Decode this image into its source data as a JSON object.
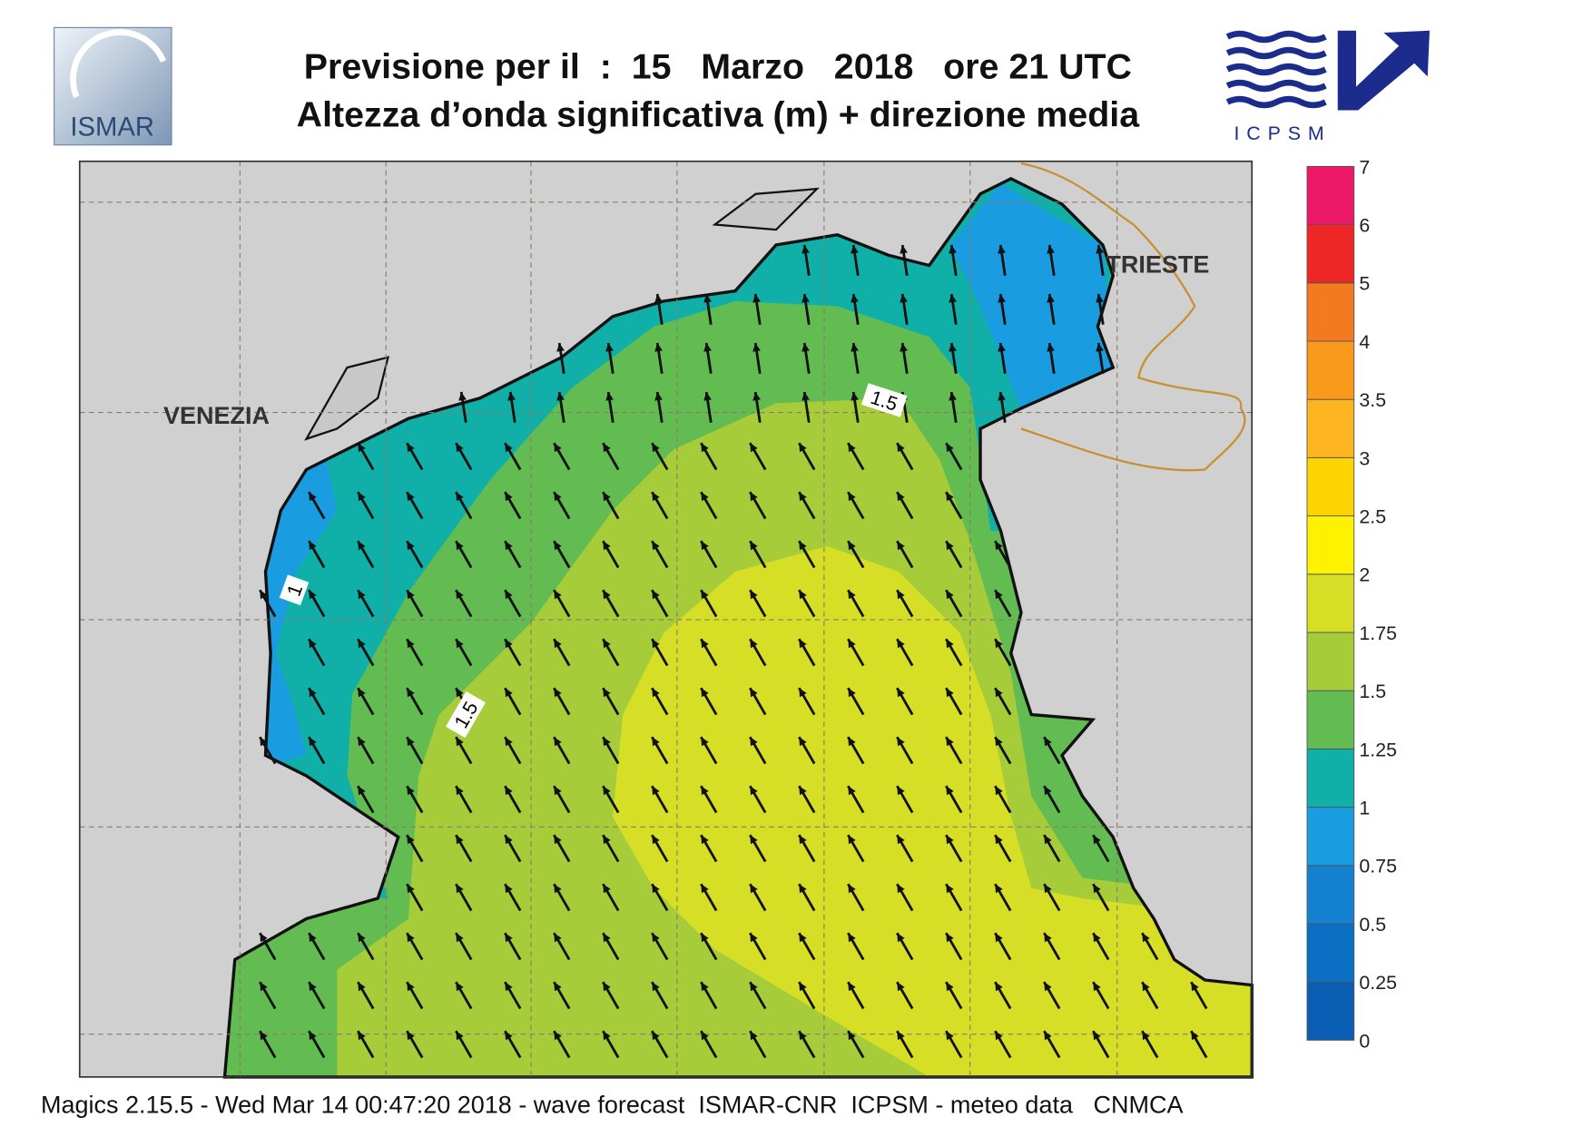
{
  "header": {
    "title": "Previsione per il  :  15   Marzo   2018   ore 21 UTC",
    "subtitle": "Altezza d’onda significativa (m) + direzione media"
  },
  "logos": {
    "left": "ISMAR",
    "right": "ICPSM"
  },
  "map": {
    "places": [
      "VENEZIA",
      "TRIESTE"
    ],
    "contour_labels": [
      "1",
      "1.5",
      "1.5"
    ]
  },
  "colorbar": {
    "ticks": [
      0,
      0.25,
      0.5,
      0.75,
      1,
      1.25,
      1.5,
      1.75,
      2,
      2.5,
      3,
      3.5,
      4,
      5,
      6,
      7
    ],
    "colors": [
      "#0a5fb4",
      "#0b70c4",
      "#1482d0",
      "#1a9de0",
      "#10b0a8",
      "#63bc52",
      "#a6cc3a",
      "#d6df25",
      "#fef200",
      "#fed400",
      "#fcb420",
      "#fa9a1d",
      "#f37a20",
      "#ee2726",
      "#ec1766"
    ]
  },
  "footer": "Magics 2.15.5 - Wed Mar 14 00:47:20 2018 - wave forecast  ISMAR-CNR  ICPSM - meteo data   CNMCA"
}
